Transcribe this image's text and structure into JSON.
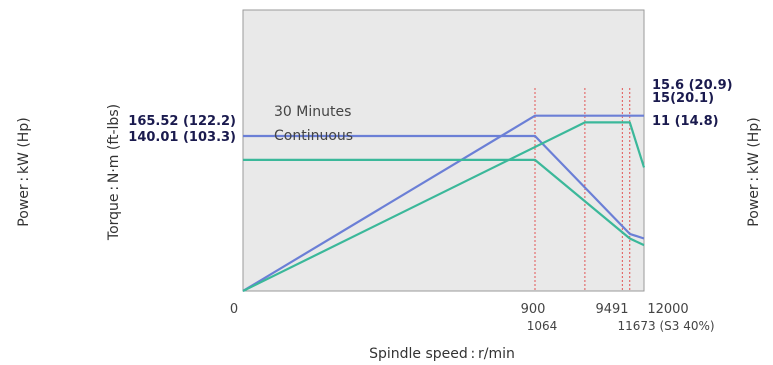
{
  "chart_data": {
    "type": "line",
    "xlabel": "Spindle speed : r/min",
    "ylabel_left": "Torque : N·m (ft-lbs)",
    "ylabel_right": "Power : kW (Hp)",
    "ylabel_far_left": "Power : kW (Hp)",
    "x_ticks_top": [
      "0",
      "900",
      "9491",
      "12000"
    ],
    "x_ticks_bottom": [
      "1064",
      "11673 (S3 40%)"
    ],
    "xlim": [
      0,
      12000
    ],
    "torque_labels": [
      "165.52 (122.2)",
      "140.01 (103.3)"
    ],
    "power_labels": [
      "15.6 (20.9)",
      "15(20.1)",
      "11 (14.8)"
    ],
    "series": [
      {
        "name": "30 Minutes",
        "color": "#6b7fd6",
        "torque": {
          "x": [
            0,
            9491,
            11673,
            12000
          ],
          "y": [
            165.52,
            165.52,
            61.0,
            56.0
          ]
        },
        "power": {
          "x": [
            0,
            9491,
            11673,
            12000
          ],
          "y": [
            0,
            15.6,
            15.6,
            15.6
          ]
        }
      },
      {
        "name": "Continuous",
        "color": "#3bb89a",
        "torque": {
          "x": [
            0,
            9491,
            11673,
            12000
          ],
          "y": [
            140.01,
            140.01,
            56.0,
            49.0
          ]
        },
        "power": {
          "x": [
            0,
            10640,
            11673,
            12000
          ],
          "y": [
            0,
            15,
            15,
            11
          ]
        }
      }
    ],
    "colors": {
      "plot_background": "#e9e9e9",
      "guide_lines": "#e03030"
    }
  }
}
